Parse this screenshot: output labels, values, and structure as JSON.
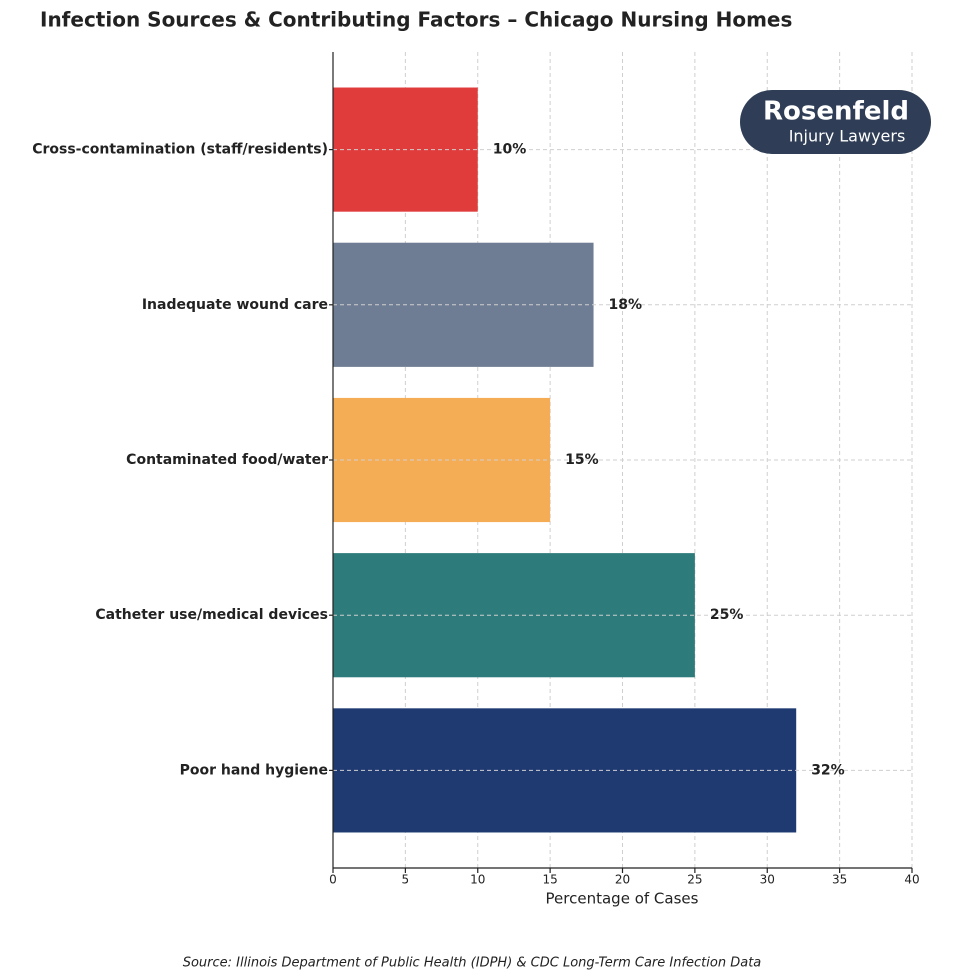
{
  "chart_data": {
    "type": "bar",
    "orientation": "horizontal",
    "title": "Infection Sources & Contributing Factors – Chicago Nursing Homes",
    "categories": [
      "Cross-contamination (staff/residents)",
      "Inadequate wound care",
      "Contaminated food/water",
      "Catheter use/medical devices",
      "Poor hand hygiene"
    ],
    "values": [
      10,
      18,
      15,
      25,
      32
    ],
    "value_labels": [
      "10%",
      "18%",
      "15%",
      "25%",
      "32%"
    ],
    "colors": [
      "#e03c3c",
      "#6e7d93",
      "#f4ad55",
      "#2d7b7a",
      "#1f3a70"
    ],
    "xlabel": "Percentage of Cases",
    "xlim": [
      0,
      40
    ],
    "xticks": [
      0,
      5,
      10,
      15,
      20,
      25,
      30,
      35,
      40
    ],
    "grid": true,
    "source": "Source: Illinois Department of Public Health (IDPH) & CDC Long-Term Care Infection Data"
  },
  "logo": {
    "name": "Rosenfeld",
    "tagline": "Injury Lawyers"
  }
}
